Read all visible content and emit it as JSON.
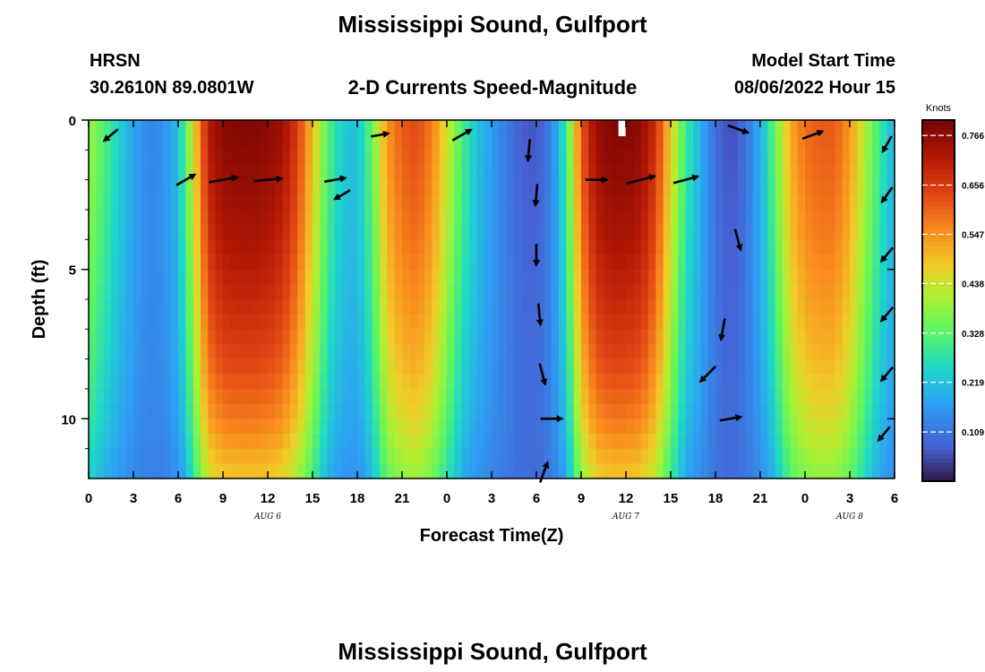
{
  "page": {
    "title": "Mississippi Sound, Gulfport",
    "station_id": "HRSN",
    "coordinates": "30.2610N  89.0801W",
    "plot_title": "2-D Currents Speed-Magnitude",
    "model_start_label": "Model Start Time",
    "model_start_value": "08/06/2022 Hour 15",
    "footer_title": "Mississippi Sound, Gulfport"
  },
  "colors": {
    "text": "#000000",
    "background": "#ffffff",
    "arrow": "#000000",
    "missing": "#ffffff"
  },
  "chart_data": {
    "type": "heatmap",
    "title": "2-D Currents Speed-Magnitude",
    "xlabel": "Forecast Time(Z)",
    "ylabel": "Depth (ft)",
    "x_ticks": [
      "0",
      "3",
      "6",
      "9",
      "12",
      "15",
      "18",
      "21",
      "0",
      "3",
      "6",
      "9",
      "12",
      "15",
      "18",
      "21",
      "0",
      "3",
      "6"
    ],
    "x_range_hours": [
      0,
      54
    ],
    "date_labels": [
      {
        "label": "AUG 6",
        "hour": 12
      },
      {
        "label": "AUG 7",
        "hour": 36
      },
      {
        "label": "AUG 8",
        "hour": 51
      }
    ],
    "y_ticks": [
      "0",
      "5",
      "10"
    ],
    "y_range_ft": [
      0,
      12
    ],
    "y_inverted": true,
    "colorbar": {
      "label": "Knots",
      "ticks": [
        "0.766",
        "0.656",
        "0.547",
        "0.438",
        "0.328",
        "0.219",
        "0.109"
      ],
      "min": 0.0,
      "max": 0.8,
      "colormap": "turbo"
    },
    "speed_profile": {
      "hours": [
        0,
        1,
        2,
        3,
        4,
        5,
        6,
        7,
        8,
        9,
        10,
        11,
        12,
        13,
        14,
        15,
        16,
        17,
        18,
        19,
        20,
        21,
        22,
        23,
        24,
        25,
        26,
        27,
        28,
        29,
        30,
        31,
        32,
        33,
        34,
        35,
        36,
        37,
        38,
        39,
        40,
        41,
        42,
        43,
        44,
        45,
        46,
        47,
        48,
        49,
        50,
        51,
        52,
        53,
        54
      ],
      "surface_speed_knots": [
        0.4,
        0.33,
        0.25,
        0.18,
        0.14,
        0.15,
        0.22,
        0.45,
        0.72,
        0.78,
        0.79,
        0.79,
        0.78,
        0.75,
        0.66,
        0.5,
        0.33,
        0.24,
        0.22,
        0.35,
        0.55,
        0.62,
        0.64,
        0.58,
        0.45,
        0.32,
        0.23,
        0.17,
        0.12,
        0.08,
        0.07,
        0.13,
        0.3,
        0.62,
        0.76,
        0.79,
        0.79,
        0.77,
        0.68,
        0.48,
        0.3,
        0.2,
        0.1,
        0.06,
        0.1,
        0.2,
        0.35,
        0.52,
        0.6,
        0.62,
        0.62,
        0.55,
        0.42,
        0.3,
        0.2
      ],
      "depth_ft": [
        0,
        2,
        4,
        6,
        8,
        10,
        12
      ],
      "depth_factor": [
        1.0,
        0.97,
        0.93,
        0.88,
        0.82,
        0.74,
        0.62
      ],
      "missing_cells": [
        {
          "hour": 35.5,
          "depth_ft": 0
        }
      ]
    },
    "vectors": [
      {
        "hour": 1.5,
        "depth_ft": 0.5,
        "angle_deg": 220,
        "length": 0.5
      },
      {
        "hour": 6.5,
        "depth_ft": 2,
        "angle_deg": 30,
        "length": 0.6
      },
      {
        "hour": 9,
        "depth_ft": 2,
        "angle_deg": 10,
        "length": 0.8
      },
      {
        "hour": 12,
        "depth_ft": 2,
        "angle_deg": 5,
        "length": 0.8
      },
      {
        "hour": 16.5,
        "depth_ft": 2,
        "angle_deg": 10,
        "length": 0.6
      },
      {
        "hour": 17,
        "depth_ft": 2.5,
        "angle_deg": 210,
        "length": 0.5
      },
      {
        "hour": 19.5,
        "depth_ft": 0.5,
        "angle_deg": 10,
        "length": 0.5
      },
      {
        "hour": 25,
        "depth_ft": 0.5,
        "angle_deg": 30,
        "length": 0.6
      },
      {
        "hour": 29.5,
        "depth_ft": 1,
        "angle_deg": 265,
        "length": 0.6
      },
      {
        "hour": 30,
        "depth_ft": 2.5,
        "angle_deg": 265,
        "length": 0.6
      },
      {
        "hour": 30,
        "depth_ft": 4.5,
        "angle_deg": 270,
        "length": 0.6
      },
      {
        "hour": 30.2,
        "depth_ft": 6.5,
        "angle_deg": 275,
        "length": 0.6
      },
      {
        "hour": 30.4,
        "depth_ft": 8.5,
        "angle_deg": 285,
        "length": 0.6
      },
      {
        "hour": 31,
        "depth_ft": 10,
        "angle_deg": 0,
        "length": 0.6
      },
      {
        "hour": 30.5,
        "depth_ft": 11.8,
        "angle_deg": 70,
        "length": 0.6
      },
      {
        "hour": 34,
        "depth_ft": 2,
        "angle_deg": 0,
        "length": 0.6
      },
      {
        "hour": 37,
        "depth_ft": 2,
        "angle_deg": 15,
        "length": 0.8
      },
      {
        "hour": 40,
        "depth_ft": 2,
        "angle_deg": 15,
        "length": 0.7
      },
      {
        "hour": 43.5,
        "depth_ft": 0.3,
        "angle_deg": 340,
        "length": 0.6
      },
      {
        "hour": 43.5,
        "depth_ft": 4,
        "angle_deg": 285,
        "length": 0.6
      },
      {
        "hour": 42.5,
        "depth_ft": 7,
        "angle_deg": 260,
        "length": 0.6
      },
      {
        "hour": 41.5,
        "depth_ft": 8.5,
        "angle_deg": 225,
        "length": 0.6
      },
      {
        "hour": 43,
        "depth_ft": 10,
        "angle_deg": 10,
        "length": 0.6
      },
      {
        "hour": 48.5,
        "depth_ft": 0.5,
        "angle_deg": 20,
        "length": 0.6
      },
      {
        "hour": 53.5,
        "depth_ft": 0.8,
        "angle_deg": 240,
        "length": 0.5
      },
      {
        "hour": 53.5,
        "depth_ft": 2.5,
        "angle_deg": 235,
        "length": 0.5
      },
      {
        "hour": 53.5,
        "depth_ft": 4.5,
        "angle_deg": 230,
        "length": 0.5
      },
      {
        "hour": 53.5,
        "depth_ft": 6.5,
        "angle_deg": 230,
        "length": 0.5
      },
      {
        "hour": 53.5,
        "depth_ft": 8.5,
        "angle_deg": 230,
        "length": 0.5
      },
      {
        "hour": 53.3,
        "depth_ft": 10.5,
        "angle_deg": 230,
        "length": 0.5
      }
    ]
  }
}
